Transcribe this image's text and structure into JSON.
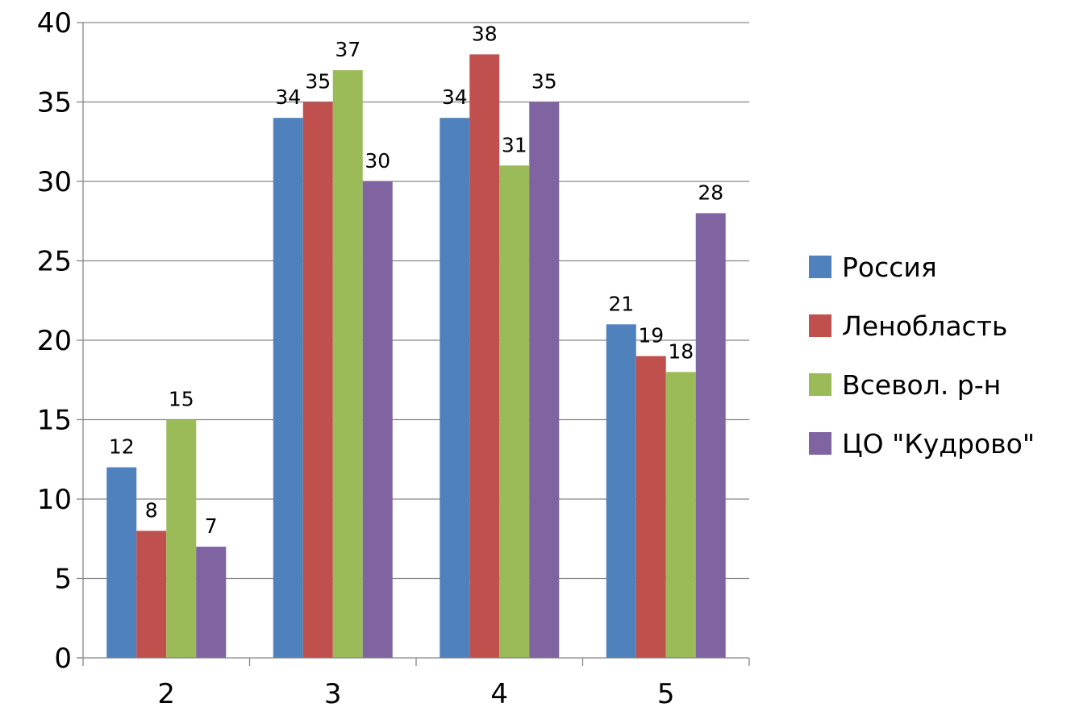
{
  "chart_data": {
    "type": "bar",
    "categories": [
      "2",
      "3",
      "4",
      "5"
    ],
    "series": [
      {
        "name": "Россия",
        "color": "#4F81BD",
        "values": [
          12,
          34,
          34,
          21
        ]
      },
      {
        "name": "Ленобласть",
        "color": "#C0504D",
        "values": [
          8,
          35,
          38,
          19
        ]
      },
      {
        "name": "Всевол. р-н",
        "color": "#9BBB59",
        "values": [
          15,
          37,
          31,
          18
        ]
      },
      {
        "name": "ЦО \"Кудрово\"",
        "color": "#8064A2",
        "values": [
          7,
          30,
          35,
          28
        ]
      }
    ],
    "ylim": [
      0,
      40
    ],
    "yticks": [
      0,
      5,
      10,
      15,
      20,
      25,
      30,
      35,
      40
    ],
    "grid": true,
    "legend_position": "right",
    "data_labels": true,
    "title": "",
    "xlabel": "",
    "ylabel": ""
  }
}
